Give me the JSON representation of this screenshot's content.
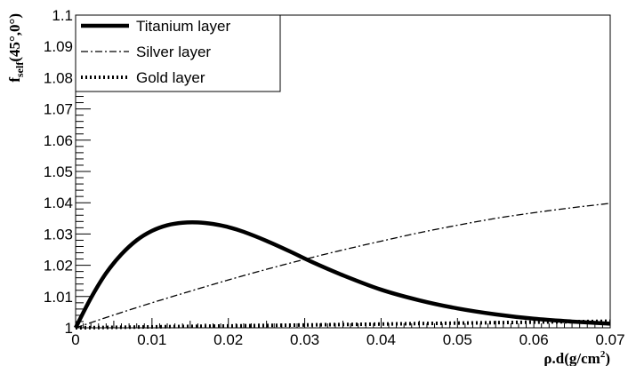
{
  "chart_data": {
    "type": "line",
    "xlabel": "ρ.d(g/cm²)",
    "xlabel_parts": {
      "prefix": "ρ.d(g/cm",
      "sup": "2",
      "suffix": ")"
    },
    "ylabel": "f_self(45°,0°)",
    "ylabel_parts": {
      "f": "f",
      "sub": "self",
      "rest": "(45°,0°)"
    },
    "xlim": [
      0,
      0.07
    ],
    "ylim": [
      1.0,
      1.1
    ],
    "x_ticks": [
      0,
      0.01,
      0.02,
      0.03,
      0.04,
      0.05,
      0.06,
      0.07
    ],
    "x_tick_labels": [
      "0",
      "0.01",
      "0.02",
      "0.03",
      "0.04",
      "0.05",
      "0.06",
      "0.07"
    ],
    "y_ticks": [
      1.0,
      1.01,
      1.02,
      1.03,
      1.04,
      1.05,
      1.06,
      1.07,
      1.08,
      1.09,
      1.1
    ],
    "y_tick_labels": [
      "1",
      "1.01",
      "1.02",
      "1.03",
      "1.04",
      "1.05",
      "1.06",
      "1.07",
      "1.08",
      "1.09",
      "1.1"
    ],
    "grid": false,
    "legend_position": "top-left",
    "series": [
      {
        "name": "Titanium layer",
        "style": "solid-thick",
        "color": "#000000",
        "x": [
          0,
          0.002,
          0.004,
          0.006,
          0.008,
          0.01,
          0.012,
          0.014,
          0.016,
          0.018,
          0.02,
          0.022,
          0.025,
          0.028,
          0.031,
          0.035,
          0.04,
          0.045,
          0.05,
          0.055,
          0.06,
          0.065,
          0.07
        ],
        "y": [
          1.0,
          1.0095,
          1.0175,
          1.0235,
          1.028,
          1.031,
          1.0328,
          1.0336,
          1.0337,
          1.0332,
          1.0322,
          1.0307,
          1.0278,
          1.0245,
          1.021,
          1.0168,
          1.0122,
          1.0088,
          1.0062,
          1.0043,
          1.0029,
          1.002,
          1.0013
        ]
      },
      {
        "name": "Silver layer",
        "style": "dash-dot",
        "color": "#000000",
        "x": [
          0,
          0.005,
          0.01,
          0.015,
          0.02,
          0.025,
          0.03,
          0.035,
          0.04,
          0.045,
          0.05,
          0.055,
          0.06,
          0.065,
          0.07
        ],
        "y": [
          1.0,
          1.0041,
          1.008,
          1.0117,
          1.0153,
          1.0187,
          1.0219,
          1.0249,
          1.0277,
          1.0304,
          1.0328,
          1.035,
          1.0368,
          1.0384,
          1.0398
        ]
      },
      {
        "name": "Gold layer",
        "style": "dotted-thick",
        "color": "#000000",
        "x": [
          0,
          0.01,
          0.02,
          0.03,
          0.04,
          0.05,
          0.06,
          0.07
        ],
        "y": [
          1.0,
          1.0003,
          1.0006,
          1.0009,
          1.0012,
          1.0015,
          1.0018,
          1.0021
        ]
      }
    ]
  }
}
